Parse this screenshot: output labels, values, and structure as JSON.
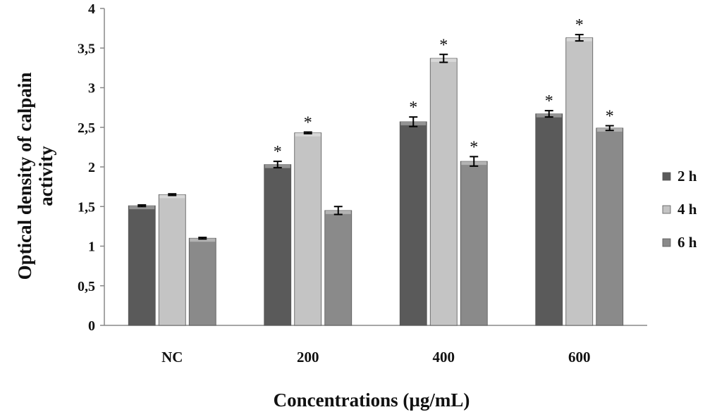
{
  "chart_data": {
    "type": "bar",
    "title": "",
    "xlabel": "Concentrations (µg/mL)",
    "ylabel": [
      "Optical density of calpain",
      "activity"
    ],
    "categories": [
      "NC",
      "200",
      "400",
      "600"
    ],
    "ylim": [
      0,
      4
    ],
    "yticks": [
      {
        "value": 0,
        "label": "0"
      },
      {
        "value": 0.5,
        "label": "0,5"
      },
      {
        "value": 1,
        "label": "1"
      },
      {
        "value": 1.5,
        "label": "1,5"
      },
      {
        "value": 2,
        "label": "2"
      },
      {
        "value": 2.5,
        "label": "2,5"
      },
      {
        "value": 3,
        "label": "3"
      },
      {
        "value": 3.5,
        "label": "3,5"
      },
      {
        "value": 4,
        "label": "4"
      }
    ],
    "grid": false,
    "legend_position": "right",
    "significance_marker": "*",
    "series": [
      {
        "name": "2 h",
        "color": "#5a5a5a",
        "values": [
          1.51,
          2.03,
          2.57,
          2.67
        ],
        "errors": [
          0.01,
          0.04,
          0.06,
          0.04
        ],
        "significant": [
          false,
          true,
          true,
          true
        ]
      },
      {
        "name": "4 h",
        "color": "#c4c4c4",
        "values": [
          1.65,
          2.43,
          3.37,
          3.63
        ],
        "errors": [
          0.01,
          0.01,
          0.05,
          0.04
        ],
        "significant": [
          false,
          true,
          true,
          true
        ]
      },
      {
        "name": "6 h",
        "color": "#8a8a8a",
        "values": [
          1.1,
          1.45,
          2.07,
          2.49
        ],
        "errors": [
          0.01,
          0.05,
          0.06,
          0.03
        ],
        "significant": [
          false,
          false,
          true,
          true
        ]
      }
    ]
  }
}
